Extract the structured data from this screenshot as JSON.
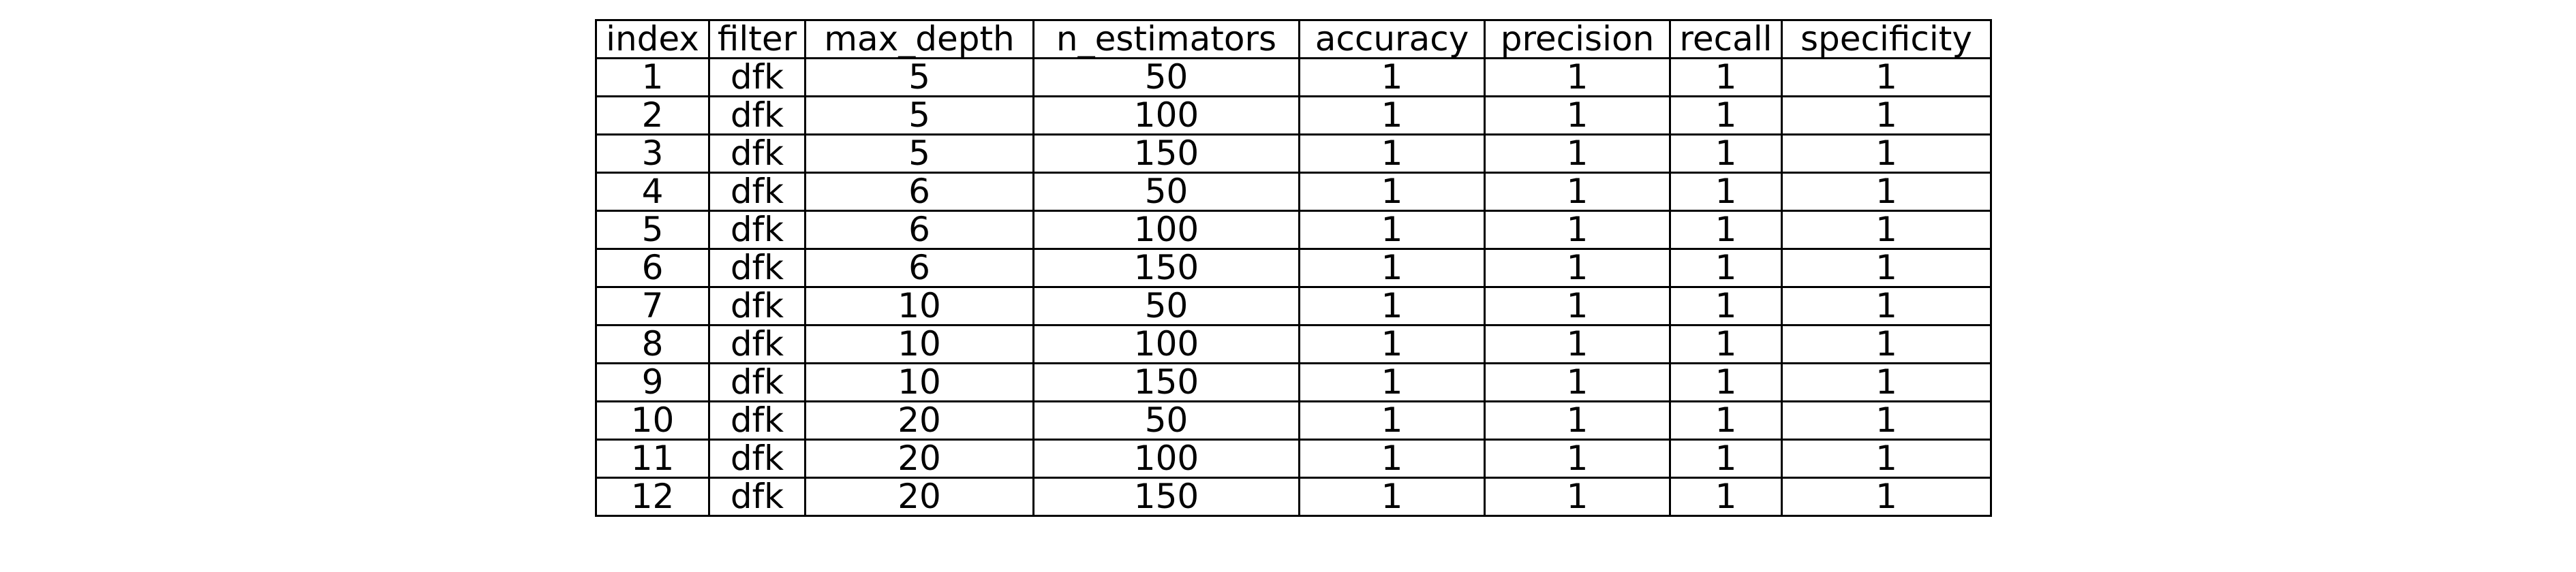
{
  "chart_data": {
    "type": "table",
    "columns": [
      "index",
      "filter",
      "max_depth",
      "n_estimators",
      "accuracy",
      "precision",
      "recall",
      "specificity"
    ],
    "rows": [
      [
        "1",
        "dfk",
        "5",
        "50",
        "1",
        "1",
        "1",
        "1"
      ],
      [
        "2",
        "dfk",
        "5",
        "100",
        "1",
        "1",
        "1",
        "1"
      ],
      [
        "3",
        "dfk",
        "5",
        "150",
        "1",
        "1",
        "1",
        "1"
      ],
      [
        "4",
        "dfk",
        "6",
        "50",
        "1",
        "1",
        "1",
        "1"
      ],
      [
        "5",
        "dfk",
        "6",
        "100",
        "1",
        "1",
        "1",
        "1"
      ],
      [
        "6",
        "dfk",
        "6",
        "150",
        "1",
        "1",
        "1",
        "1"
      ],
      [
        "7",
        "dfk",
        "10",
        "50",
        "1",
        "1",
        "1",
        "1"
      ],
      [
        "8",
        "dfk",
        "10",
        "100",
        "1",
        "1",
        "1",
        "1"
      ],
      [
        "9",
        "dfk",
        "10",
        "150",
        "1",
        "1",
        "1",
        "1"
      ],
      [
        "10",
        "dfk",
        "20",
        "50",
        "1",
        "1",
        "1",
        "1"
      ],
      [
        "11",
        "dfk",
        "20",
        "100",
        "1",
        "1",
        "1",
        "1"
      ],
      [
        "12",
        "dfk",
        "20",
        "150",
        "1",
        "1",
        "1",
        "1"
      ]
    ]
  }
}
